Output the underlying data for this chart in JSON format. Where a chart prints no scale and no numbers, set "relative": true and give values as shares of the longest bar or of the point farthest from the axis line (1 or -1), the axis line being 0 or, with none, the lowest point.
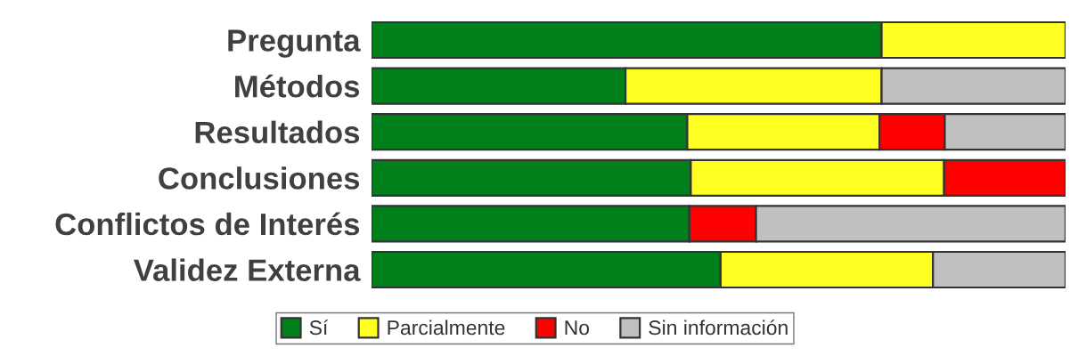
{
  "chart_data": {
    "type": "bar",
    "orientation": "horizontal",
    "stacked": true,
    "relative": true,
    "tick_labels": "y",
    "legend": "bottom",
    "categories": [
      "Pregunta",
      "Métodos",
      "Resultados",
      "Conclusiones",
      "Conflictos de Interés",
      "Validez Externa"
    ],
    "series": [
      {
        "name": "Sí",
        "color": "#00801a",
        "values": [
          0.735,
          0.366,
          0.455,
          0.46,
          0.458,
          0.503
        ]
      },
      {
        "name": "Parcialmente",
        "color": "#ffff21",
        "values": [
          0.265,
          0.369,
          0.277,
          0.365,
          null,
          0.306
        ]
      },
      {
        "name": "No",
        "color": "#ff0000",
        "values": [
          null,
          null,
          0.094,
          0.175,
          0.096,
          null
        ]
      },
      {
        "name": "Sin información",
        "color": "#c0c0c0",
        "values": [
          null,
          0.265,
          0.174,
          null,
          0.446,
          0.191
        ]
      }
    ]
  }
}
